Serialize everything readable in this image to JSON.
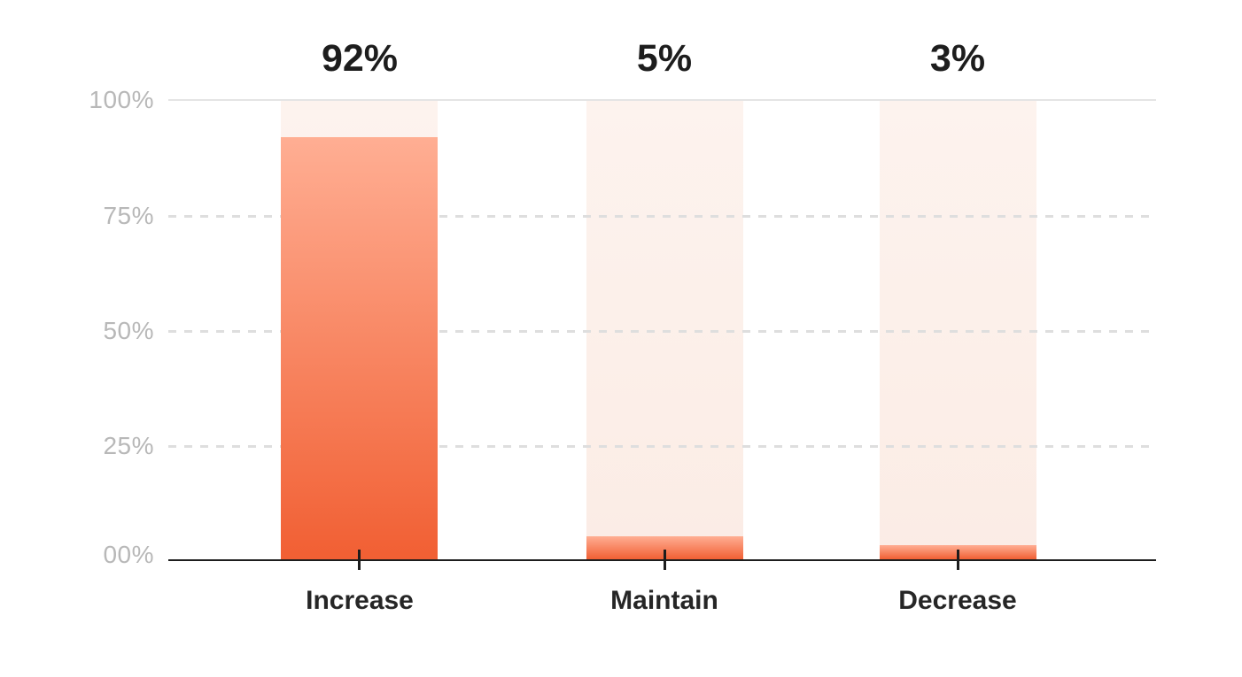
{
  "chart_data": {
    "type": "bar",
    "title": "",
    "categories": [
      "Increase",
      "Maintain",
      "Decrease"
    ],
    "values": [
      92,
      5,
      3
    ],
    "value_labels": [
      "92%",
      "5%",
      "3%"
    ],
    "yticks": [
      "100%",
      "75%",
      "50%",
      "25%",
      "00%"
    ],
    "ylim": [
      0,
      100
    ],
    "grid": {
      "solid_line_at": 100,
      "dashed_lines_at": [
        75,
        50,
        25
      ]
    },
    "legend": "none",
    "colors": {
      "bar_gradient_top": "#FFAE93",
      "bar_gradient_bottom": "#F15F33",
      "bar_track_top": "#FDF3EE",
      "bar_track_bottom": "#FBECE5",
      "axis_line": "#1D1D1D",
      "grid_solid": "#E4E4E4",
      "grid_dashed": "#DEDEDE",
      "ytick_label": "#B8B8B8",
      "value_label": "#1D1D1D",
      "category_label": "#262626"
    }
  }
}
